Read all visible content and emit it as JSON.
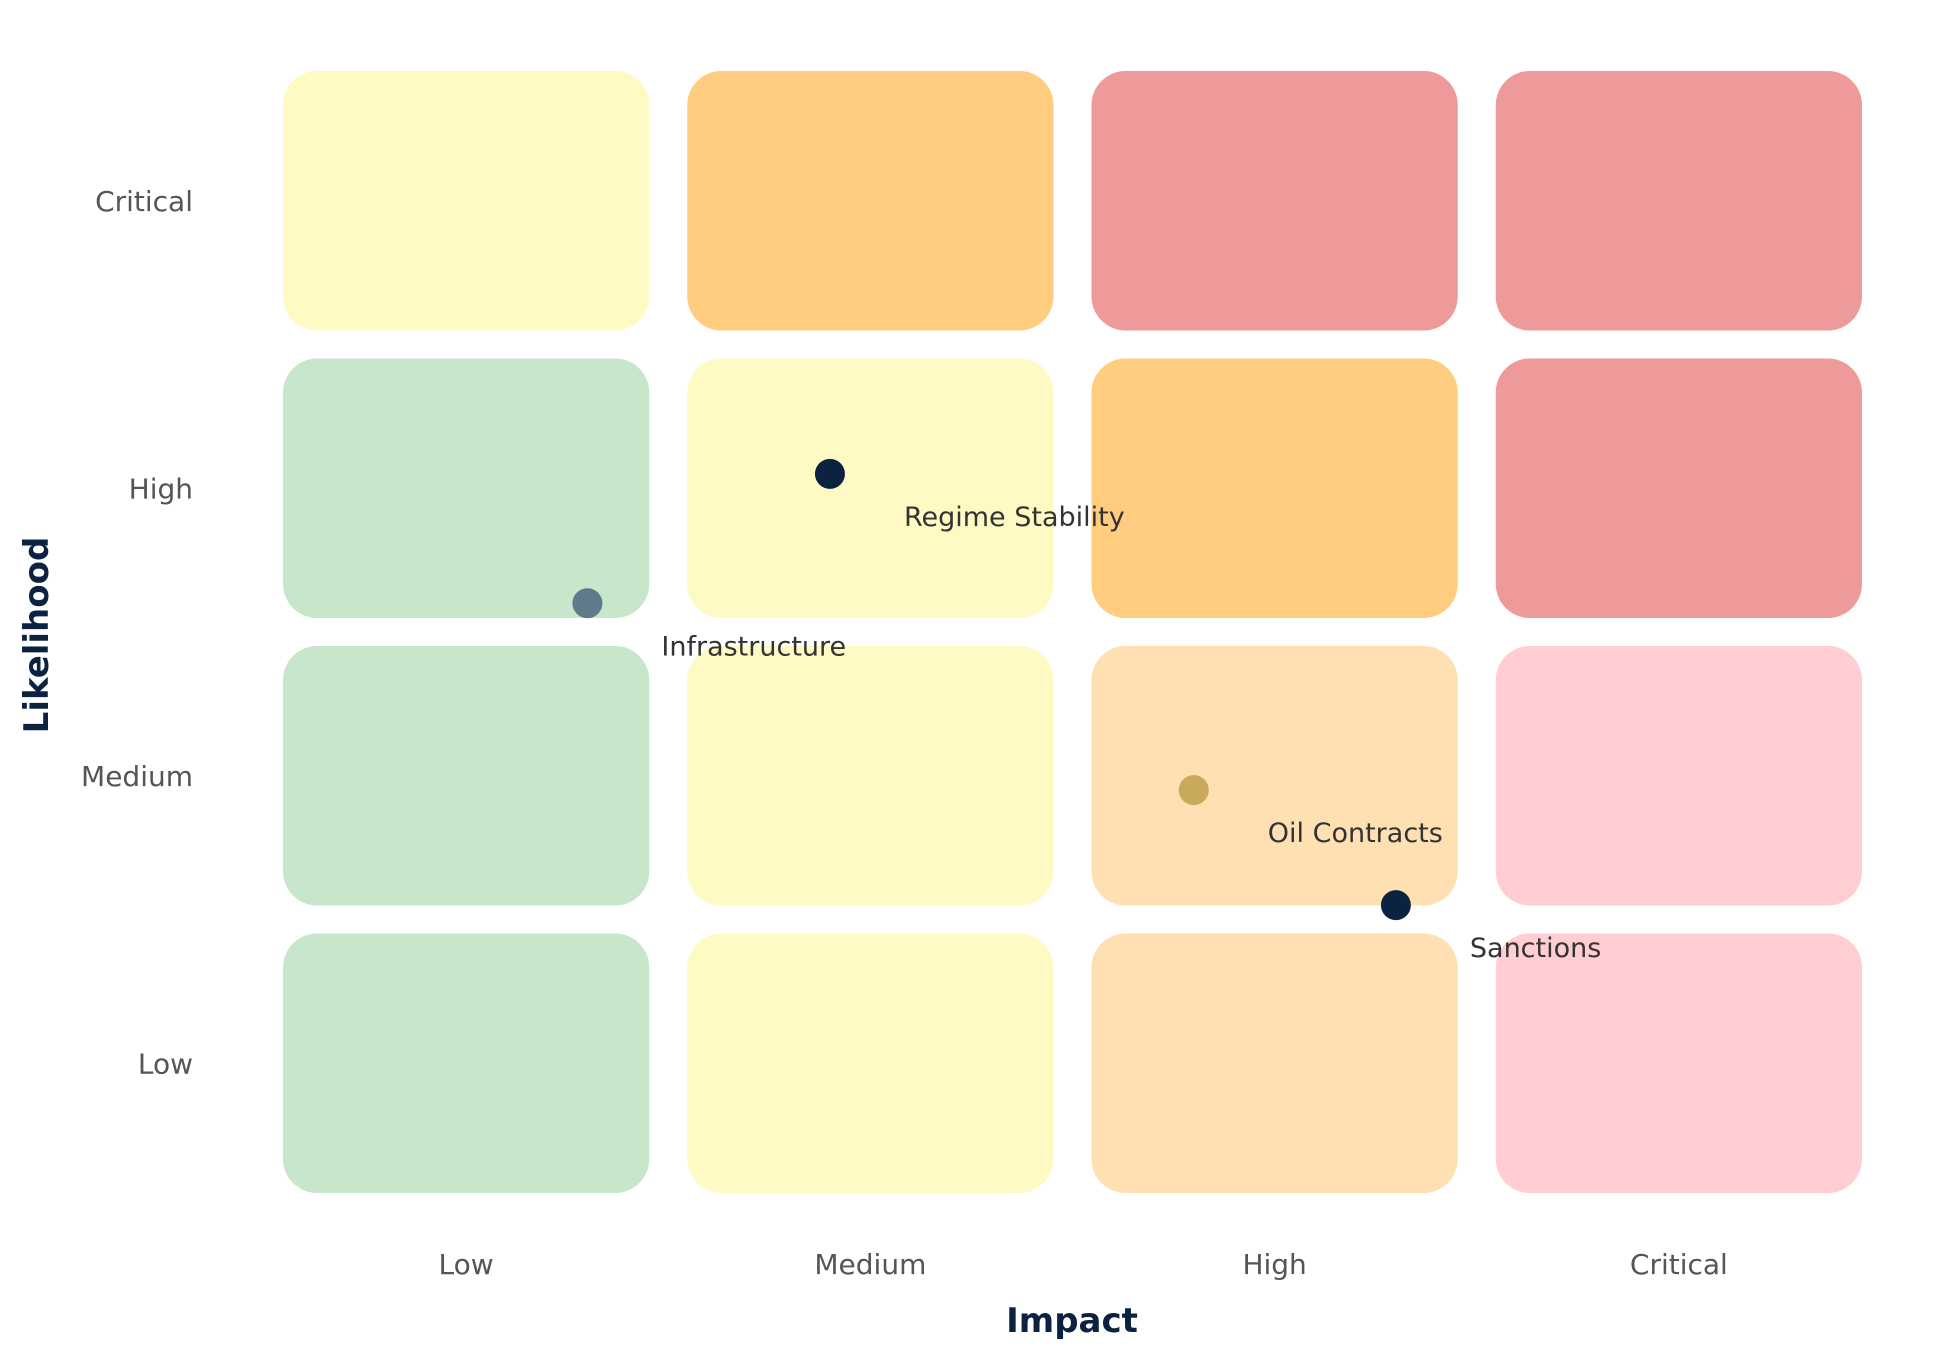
{
  "chart_data": {
    "type": "heatmap",
    "title": "",
    "xlabel": "Impact",
    "ylabel": "Likelihood",
    "x_categories": [
      "Low",
      "Medium",
      "High",
      "Critical"
    ],
    "y_categories": [
      "Low",
      "Medium",
      "High",
      "Critical"
    ],
    "xlim": [
      0,
      4
    ],
    "ylim": [
      0,
      4
    ],
    "grid": false,
    "cell_colors": [
      [
        "#c8e6c9",
        "#fff9c4",
        "#ffe0b2",
        "#ffcdd2"
      ],
      [
        "#c8e6c9",
        "#fff9c4",
        "#ffe0b2",
        "#ffcdd2"
      ],
      [
        "#c8e6c9",
        "#fff9c4",
        "#ffcc80",
        "#ef9a9a"
      ],
      [
        "#fff9c4",
        "#ffcc80",
        "#ef9a9a",
        "#ef9a9a"
      ]
    ],
    "points": [
      {
        "label": "Regime Stability",
        "x": 1.4,
        "y": 2.55,
        "color": "#0b2340"
      },
      {
        "label": "Infrastructure",
        "x": 0.8,
        "y": 2.1,
        "color": "#5f7a8a"
      },
      {
        "label": "Oil Contracts",
        "x": 2.3,
        "y": 1.45,
        "color": "#c9a95c"
      },
      {
        "label": "Sanctions",
        "x": 2.8,
        "y": 1.05,
        "color": "#0b2340"
      }
    ]
  }
}
